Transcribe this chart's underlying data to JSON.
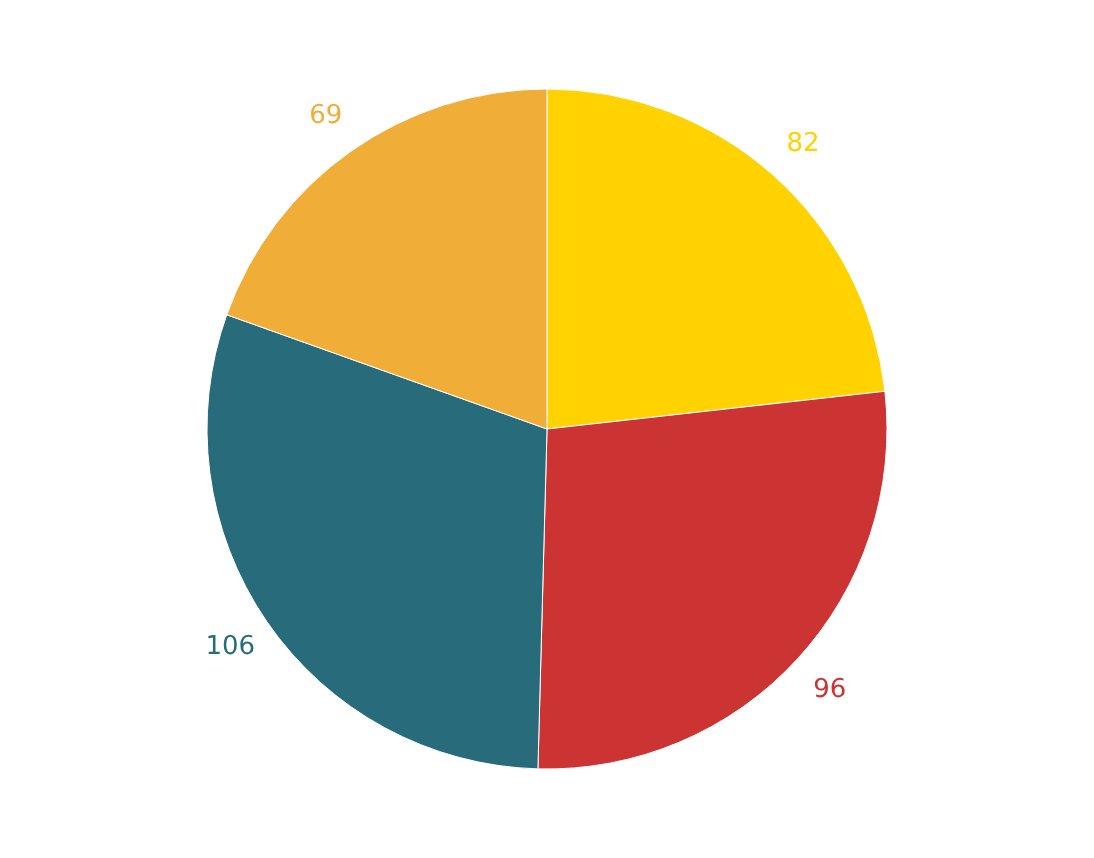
{
  "chart_data": {
    "type": "pie",
    "categories": [
      null,
      null,
      null,
      null
    ],
    "values": [
      82,
      96,
      106,
      69
    ],
    "colors": [
      "#ffd200",
      "#cc3333",
      "#286b7a",
      "#f0ad38"
    ],
    "data_labels": true
  }
}
